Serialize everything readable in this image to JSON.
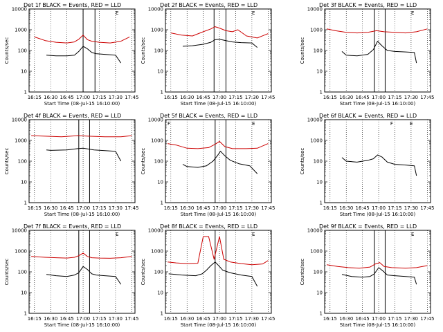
{
  "chart_data": [
    {
      "type": "line",
      "title": "Det 1f BLACK = Events, RED = LLD",
      "xlabel": "Start Time (08-Jul-15 16:10:00)",
      "ylabel": "Counts/sec",
      "x_ticks": [
        "16:15",
        "16:30",
        "16:45",
        "17:00",
        "17:15",
        "17:30",
        "17:45"
      ],
      "y_ticks": [
        "1",
        "10",
        "100",
        "1000",
        "10000"
      ],
      "ylim": [
        1,
        10000
      ],
      "yscale": "log",
      "xlim": [
        "16:10",
        "17:48"
      ],
      "grid": "vertical dotted",
      "markers": [
        "17:00",
        "17:11"
      ],
      "marker_labels": [
        "",
        "",
        "E"
      ],
      "series": [
        {
          "name": "BLACK",
          "color": "#000000",
          "x": [
            "16:26",
            "16:35",
            "16:45",
            "16:52",
            "16:56",
            "17:00",
            "17:04",
            "17:08",
            "17:12",
            "17:20",
            "17:30",
            "17:35"
          ],
          "values": [
            60,
            55,
            55,
            60,
            90,
            160,
            120,
            80,
            70,
            65,
            60,
            25
          ]
        },
        {
          "name": "RED",
          "color": "#cc0000",
          "x": [
            "16:15",
            "16:25",
            "16:35",
            "16:45",
            "16:52",
            "16:56",
            "17:00",
            "17:04",
            "17:08",
            "17:15",
            "17:25",
            "17:35",
            "17:43"
          ],
          "values": [
            450,
            300,
            250,
            230,
            260,
            350,
            550,
            330,
            280,
            250,
            230,
            280,
            450
          ]
        }
      ]
    },
    {
      "type": "line",
      "title": "Det 2f BLACK = Events, RED = LLD",
      "xlabel": "Start Time (08-Jul-15 16:10:00)",
      "ylabel": "Counts/sec",
      "x_ticks": [
        "16:15",
        "16:30",
        "16:45",
        "17:00",
        "17:15",
        "17:30",
        "17:45"
      ],
      "y_ticks": [
        "1",
        "10",
        "100",
        "1000",
        "10000"
      ],
      "ylim": [
        1,
        10000
      ],
      "yscale": "log",
      "xlim": [
        "16:10",
        "17:48"
      ],
      "grid": "vertical dotted",
      "markers": [
        "16:55",
        "17:06"
      ],
      "marker_labels": [
        "",
        "",
        "E"
      ],
      "series": [
        {
          "name": "BLACK",
          "color": "#000000",
          "x": [
            "16:26",
            "16:35",
            "16:45",
            "16:52",
            "16:56",
            "17:00",
            "17:06",
            "17:12",
            "17:20",
            "17:30",
            "17:35"
          ],
          "values": [
            160,
            170,
            200,
            250,
            330,
            350,
            300,
            260,
            240,
            230,
            140
          ]
        },
        {
          "name": "RED",
          "color": "#cc0000",
          "x": [
            "16:15",
            "16:25",
            "16:35",
            "16:45",
            "16:52",
            "16:56",
            "17:00",
            "17:06",
            "17:12",
            "17:17",
            "17:25",
            "17:35",
            "17:45"
          ],
          "values": [
            700,
            550,
            500,
            800,
            1100,
            1400,
            1200,
            900,
            800,
            1000,
            500,
            400,
            650
          ]
        }
      ]
    },
    {
      "type": "line",
      "title": "Det 3f BLACK = Events, RED = LLD",
      "xlabel": "Start Time (08-Jul-15 16:10:00)",
      "ylabel": "Counts/sec",
      "x_ticks": [
        "16:15",
        "16:30",
        "16:45",
        "17:00",
        "17:15",
        "17:30",
        "17:45"
      ],
      "y_ticks": [
        "1",
        "10",
        "100",
        "1000",
        "10000"
      ],
      "ylim": [
        1,
        10000
      ],
      "yscale": "log",
      "xlim": [
        "16:10",
        "17:48"
      ],
      "grid": "vertical dotted",
      "markers": [
        "16:56",
        "17:06"
      ],
      "marker_labels": [
        "",
        "",
        "E"
      ],
      "series": [
        {
          "name": "BLACK",
          "color": "#000000",
          "x": [
            "16:26",
            "16:30",
            "16:40",
            "16:50",
            "16:55",
            "16:59",
            "17:03",
            "17:08",
            "17:15",
            "17:25",
            "17:33",
            "17:35"
          ],
          "values": [
            90,
            60,
            55,
            65,
            110,
            280,
            170,
            100,
            90,
            85,
            80,
            25
          ]
        },
        {
          "name": "RED",
          "color": "#cc0000",
          "x": [
            "16:12",
            "16:20",
            "16:30",
            "16:40",
            "16:50",
            "16:58",
            "17:05",
            "17:15",
            "17:25",
            "17:35",
            "17:45"
          ],
          "values": [
            1100,
            900,
            750,
            700,
            750,
            900,
            800,
            750,
            700,
            800,
            1100
          ]
        }
      ]
    },
    {
      "type": "line",
      "title": "Det 4f BLACK = Events, RED = LLD",
      "xlabel": "Start Time (08-Jul-15 16:10:00)",
      "ylabel": "Counts/sec",
      "x_ticks": [
        "16:15",
        "16:30",
        "16:45",
        "17:00",
        "17:15",
        "17:30",
        "17:45"
      ],
      "y_ticks": [
        "1",
        "10",
        "100",
        "1000",
        "10000"
      ],
      "ylim": [
        1,
        10000
      ],
      "yscale": "log",
      "xlim": [
        "16:10",
        "17:48"
      ],
      "grid": "vertical dotted",
      "markers": [
        "16:56",
        "17:06"
      ],
      "marker_labels": [
        "",
        ""
      ],
      "series": [
        {
          "name": "BLACK",
          "color": "#000000",
          "x": [
            "16:26",
            "16:30",
            "16:45",
            "16:55",
            "17:00",
            "17:10",
            "17:20",
            "17:30",
            "17:35"
          ],
          "values": [
            350,
            330,
            350,
            400,
            420,
            350,
            320,
            300,
            100
          ]
        },
        {
          "name": "RED",
          "color": "#cc0000",
          "x": [
            "16:12",
            "16:25",
            "16:40",
            "16:55",
            "17:05",
            "17:20",
            "17:35",
            "17:45"
          ],
          "values": [
            1700,
            1600,
            1500,
            1700,
            1600,
            1500,
            1500,
            1700
          ]
        }
      ]
    },
    {
      "type": "line",
      "title": "Det 5f BLACK = Events, RED = LLD",
      "xlabel": "Start Time (08-Jul-15 16:10:00)",
      "ylabel": "Counts/sec",
      "x_ticks": [
        "16:15",
        "16:30",
        "16:45",
        "17:00",
        "17:15",
        "17:30",
        "17:45"
      ],
      "y_ticks": [
        "1",
        "10",
        "100",
        "1000",
        "10000"
      ],
      "ylim": [
        1,
        10000
      ],
      "yscale": "log",
      "xlim": [
        "16:10",
        "17:48"
      ],
      "grid": "vertical dotted",
      "markers": [
        "16:56",
        "17:06"
      ],
      "marker_labels": [
        "F",
        "",
        "E"
      ],
      "series": [
        {
          "name": "BLACK",
          "color": "#000000",
          "x": [
            "16:26",
            "16:30",
            "16:40",
            "16:48",
            "16:54",
            "16:58",
            "17:01",
            "17:05",
            "17:10",
            "17:18",
            "17:28",
            "17:35"
          ],
          "values": [
            70,
            55,
            50,
            60,
            100,
            180,
            300,
            180,
            110,
            75,
            60,
            25
          ]
        },
        {
          "name": "RED",
          "color": "#cc0000",
          "x": [
            "16:12",
            "16:20",
            "16:30",
            "16:40",
            "16:50",
            "16:56",
            "17:00",
            "17:05",
            "17:12",
            "17:25",
            "17:35",
            "17:45"
          ],
          "values": [
            700,
            600,
            420,
            400,
            450,
            650,
            900,
            500,
            400,
            400,
            420,
            700
          ]
        }
      ]
    },
    {
      "type": "line",
      "title": "Det 6f BLACK = Events, RED = LLD",
      "xlabel": "Start Time (08-Jul-15 16:10:00)",
      "ylabel": "Counts/sec",
      "x_ticks": [
        "16:15",
        "16:30",
        "16:45",
        "17:00",
        "17:15",
        "17:30",
        "17:45"
      ],
      "y_ticks": [
        "1",
        "10",
        "100",
        "1000",
        "10000"
      ],
      "ylim": [
        1,
        10000
      ],
      "yscale": "log",
      "xlim": [
        "16:10",
        "17:48"
      ],
      "grid": "vertical dotted",
      "markers": [],
      "marker_labels": [
        "F",
        "E"
      ],
      "series": [
        {
          "name": "BLACK",
          "color": "#000000",
          "x": [
            "16:26",
            "16:30",
            "16:40",
            "16:50",
            "16:55",
            "16:59",
            "17:03",
            "17:08",
            "17:15",
            "17:25",
            "17:33",
            "17:35"
          ],
          "values": [
            150,
            100,
            90,
            110,
            130,
            200,
            160,
            90,
            70,
            65,
            60,
            20
          ]
        }
      ]
    },
    {
      "type": "line",
      "title": "Det 7f BLACK = Events, RED = LLD",
      "xlabel": "Start Time (08-Jul-15 16:10:00)",
      "ylabel": "Counts/sec",
      "x_ticks": [
        "16:15",
        "16:30",
        "16:45",
        "17:00",
        "17:15",
        "17:30",
        "17:45"
      ],
      "y_ticks": [
        "1",
        "10",
        "100",
        "1000",
        "10000"
      ],
      "ylim": [
        1,
        10000
      ],
      "yscale": "log",
      "xlim": [
        "16:10",
        "17:48"
      ],
      "grid": "vertical dotted",
      "markers": [
        "16:56",
        "17:06"
      ],
      "marker_labels": [
        "",
        "",
        "E"
      ],
      "series": [
        {
          "name": "BLACK",
          "color": "#000000",
          "x": [
            "16:26",
            "16:35",
            "16:45",
            "16:52",
            "16:56",
            "17:00",
            "17:04",
            "17:08",
            "17:12",
            "17:20",
            "17:30",
            "17:35"
          ],
          "values": [
            75,
            65,
            60,
            70,
            90,
            180,
            130,
            80,
            70,
            65,
            60,
            25
          ]
        },
        {
          "name": "RED",
          "color": "#cc0000",
          "x": [
            "16:12",
            "16:25",
            "16:35",
            "16:45",
            "16:52",
            "16:56",
            "17:00",
            "17:04",
            "17:08",
            "17:15",
            "17:25",
            "17:35",
            "17:45"
          ],
          "values": [
            550,
            500,
            480,
            460,
            500,
            600,
            800,
            550,
            480,
            460,
            450,
            480,
            550
          ]
        }
      ]
    },
    {
      "type": "line",
      "title": "Det 8f BLACK = Events, RED = LLD",
      "xlabel": "Start Time (08-Jul-15 16:10:00)",
      "ylabel": "Counts/sec",
      "x_ticks": [
        "16:15",
        "16:30",
        "16:45",
        "17:00",
        "17:15",
        "17:30",
        "17:45"
      ],
      "y_ticks": [
        "1",
        "10",
        "100",
        "1000",
        "10000"
      ],
      "ylim": [
        1,
        10000
      ],
      "yscale": "log",
      "xlim": [
        "16:10",
        "17:48"
      ],
      "grid": "vertical dotted",
      "markers": [
        "16:56",
        "17:06"
      ],
      "marker_labels": [
        "",
        "",
        "E"
      ],
      "series": [
        {
          "name": "BLACK",
          "color": "#000000",
          "x": [
            "16:13",
            "16:25",
            "16:38",
            "16:44",
            "16:48",
            "16:52",
            "16:56",
            "17:00",
            "17:03",
            "17:10",
            "17:20",
            "17:30",
            "17:35"
          ],
          "values": [
            80,
            70,
            65,
            80,
            120,
            200,
            300,
            180,
            120,
            90,
            70,
            60,
            20
          ]
        },
        {
          "name": "RED",
          "color": "#cc0000",
          "x": [
            "16:12",
            "16:20",
            "16:30",
            "16:40",
            "16:45",
            "16:50",
            "16:55",
            "17:00",
            "17:04",
            "17:10",
            "17:20",
            "17:30",
            "17:40",
            "17:45"
          ],
          "values": [
            300,
            270,
            250,
            260,
            5000,
            5000,
            400,
            5000,
            400,
            300,
            250,
            220,
            240,
            350
          ]
        }
      ]
    },
    {
      "type": "line",
      "title": "Det 9f BLACK = Events, RED = LLD",
      "xlabel": "Start Time (08-Jul-15 16:10:00)",
      "ylabel": "Counts/sec",
      "x_ticks": [
        "16:15",
        "16:30",
        "16:45",
        "17:00",
        "17:15",
        "17:30",
        "17:45"
      ],
      "y_ticks": [
        "1",
        "10",
        "100",
        "1000",
        "10000"
      ],
      "ylim": [
        1,
        10000
      ],
      "yscale": "log",
      "xlim": [
        "16:10",
        "17:48"
      ],
      "grid": "vertical dotted",
      "markers": [
        "16:56",
        "17:06"
      ],
      "marker_labels": [
        "",
        "",
        "E"
      ],
      "series": [
        {
          "name": "BLACK",
          "color": "#000000",
          "x": [
            "16:26",
            "16:35",
            "16:45",
            "16:52",
            "16:56",
            "17:00",
            "17:04",
            "17:08",
            "17:15",
            "17:25",
            "17:33",
            "17:35"
          ],
          "values": [
            75,
            60,
            55,
            60,
            80,
            160,
            110,
            70,
            65,
            60,
            55,
            25
          ]
        },
        {
          "name": "RED",
          "color": "#cc0000",
          "x": [
            "16:12",
            "16:22",
            "16:32",
            "16:42",
            "16:52",
            "16:57",
            "17:01",
            "17:05",
            "17:12",
            "17:25",
            "17:35",
            "17:45"
          ],
          "values": [
            220,
            180,
            160,
            150,
            170,
            240,
            280,
            180,
            160,
            150,
            160,
            200
          ]
        }
      ]
    }
  ]
}
